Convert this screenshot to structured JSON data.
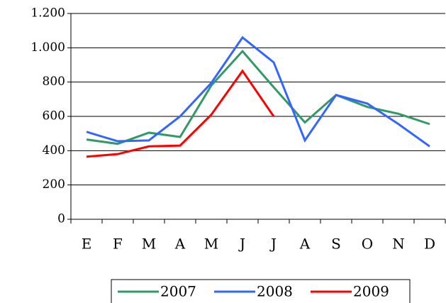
{
  "chart_data": {
    "type": "line",
    "categories": [
      "E",
      "F",
      "M",
      "A",
      "M",
      "J",
      "J",
      "A",
      "S",
      "O",
      "N",
      "D"
    ],
    "series": [
      {
        "name": "2007",
        "color": "#339966",
        "values": [
          465,
          440,
          505,
          480,
          780,
          980,
          770,
          565,
          725,
          655,
          615,
          555
        ]
      },
      {
        "name": "2008",
        "color": "#3366ff",
        "values": [
          510,
          455,
          460,
          600,
          795,
          1060,
          915,
          460,
          725,
          675,
          555,
          425
        ]
      },
      {
        "name": "2009",
        "color": "#ff0000",
        "values": [
          365,
          380,
          425,
          430,
          610,
          865,
          600,
          null,
          null,
          null,
          null,
          null
        ]
      }
    ],
    "ylim": [
      0,
      1200
    ],
    "yticks": [
      0,
      200,
      400,
      600,
      800,
      {
        "value": 1000,
        "label": "1.000"
      },
      {
        "value": 1200,
        "label": "1.200"
      }
    ],
    "grid": true,
    "legend": "bottom"
  }
}
